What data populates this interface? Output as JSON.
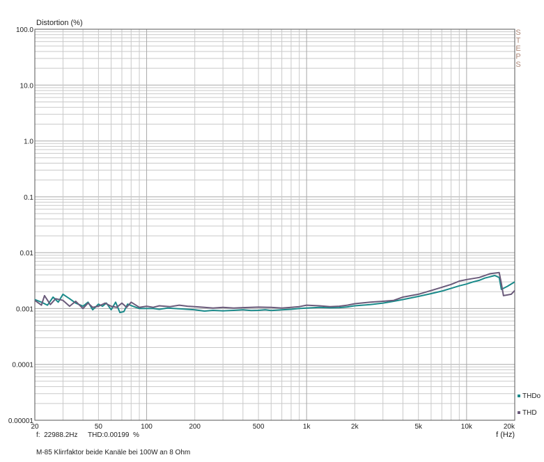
{
  "chart_data": {
    "type": "line",
    "y_axis_title": "Distortion (%)",
    "x_axis_title": "f (Hz)",
    "side_label": "STEPS",
    "y_scale": "log",
    "x_scale": "log",
    "ylim": [
      1e-05,
      100
    ],
    "xlim": [
      20,
      20000
    ],
    "y_tick_labels": [
      {
        "v": 100,
        "t": "100.0"
      },
      {
        "v": 10,
        "t": "10.0"
      },
      {
        "v": 1,
        "t": "1.0"
      },
      {
        "v": 0.1,
        "t": "0.1"
      },
      {
        "v": 0.01,
        "t": "0.01"
      },
      {
        "v": 0.001,
        "t": "0.001"
      },
      {
        "v": 0.0001,
        "t": "0.0001"
      },
      {
        "v": 1e-05,
        "t": "0.00001"
      }
    ],
    "x_tick_labels": [
      {
        "v": 20,
        "t": "20"
      },
      {
        "v": 50,
        "t": "50"
      },
      {
        "v": 100,
        "t": "100"
      },
      {
        "v": 200,
        "t": "200"
      },
      {
        "v": 500,
        "t": "500"
      },
      {
        "v": 1000,
        "t": "1k"
      },
      {
        "v": 2000,
        "t": "2k"
      },
      {
        "v": 5000,
        "t": "5k"
      },
      {
        "v": 10000,
        "t": "10k"
      },
      {
        "v": 20000,
        "t": "20k"
      }
    ],
    "grid": true,
    "series": [
      {
        "name": "THDo",
        "color": "#1a8a8a",
        "points": [
          [
            20,
            0.00145
          ],
          [
            22,
            0.0013
          ],
          [
            24,
            0.00115
          ],
          [
            26,
            0.0016
          ],
          [
            28,
            0.0013
          ],
          [
            30,
            0.0018
          ],
          [
            33,
            0.0015
          ],
          [
            36,
            0.00125
          ],
          [
            40,
            0.0011
          ],
          [
            43,
            0.0013
          ],
          [
            46,
            0.00095
          ],
          [
            50,
            0.0012
          ],
          [
            53,
            0.0011
          ],
          [
            56,
            0.00125
          ],
          [
            60,
            0.00095
          ],
          [
            64,
            0.0013
          ],
          [
            68,
            0.00085
          ],
          [
            72,
            0.00088
          ],
          [
            76,
            0.0012
          ],
          [
            82,
            0.0011
          ],
          [
            90,
            0.001
          ],
          [
            100,
            0.001
          ],
          [
            110,
            0.001
          ],
          [
            120,
            0.00097
          ],
          [
            135,
            0.00102
          ],
          [
            150,
            0.001
          ],
          [
            170,
            0.00098
          ],
          [
            200,
            0.00095
          ],
          [
            230,
            0.0009
          ],
          [
            260,
            0.00093
          ],
          [
            300,
            0.00091
          ],
          [
            350,
            0.00093
          ],
          [
            400,
            0.00095
          ],
          [
            450,
            0.00092
          ],
          [
            500,
            0.00093
          ],
          [
            550,
            0.00095
          ],
          [
            600,
            0.00092
          ],
          [
            700,
            0.00095
          ],
          [
            800,
            0.00097
          ],
          [
            900,
            0.001
          ],
          [
            1000,
            0.00102
          ],
          [
            1200,
            0.00105
          ],
          [
            1400,
            0.00103
          ],
          [
            1600,
            0.00104
          ],
          [
            1800,
            0.00107
          ],
          [
            2000,
            0.00112
          ],
          [
            2500,
            0.00118
          ],
          [
            3000,
            0.00125
          ],
          [
            3500,
            0.00135
          ],
          [
            4000,
            0.00145
          ],
          [
            5000,
            0.00165
          ],
          [
            6000,
            0.00185
          ],
          [
            7000,
            0.00205
          ],
          [
            8000,
            0.0023
          ],
          [
            9000,
            0.00255
          ],
          [
            10000,
            0.00275
          ],
          [
            11000,
            0.003
          ],
          [
            12000,
            0.0032
          ],
          [
            13000,
            0.0035
          ],
          [
            14000,
            0.0037
          ],
          [
            15000,
            0.0039
          ],
          [
            16000,
            0.0036
          ],
          [
            16500,
            0.0022
          ],
          [
            18000,
            0.0025
          ],
          [
            20000,
            0.003
          ]
        ]
      },
      {
        "name": "THD",
        "color": "#6a5a7a",
        "points": [
          [
            20,
            0.0014
          ],
          [
            22,
            0.00115
          ],
          [
            23,
            0.0017
          ],
          [
            25,
            0.00118
          ],
          [
            27,
            0.0015
          ],
          [
            30,
            0.0014
          ],
          [
            33,
            0.0011
          ],
          [
            36,
            0.00135
          ],
          [
            40,
            0.001
          ],
          [
            43,
            0.00125
          ],
          [
            46,
            0.00105
          ],
          [
            50,
            0.0011
          ],
          [
            55,
            0.00125
          ],
          [
            60,
            0.0011
          ],
          [
            65,
            0.00105
          ],
          [
            70,
            0.00125
          ],
          [
            75,
            0.00105
          ],
          [
            80,
            0.0013
          ],
          [
            90,
            0.00105
          ],
          [
            100,
            0.0011
          ],
          [
            110,
            0.00105
          ],
          [
            120,
            0.00112
          ],
          [
            140,
            0.00108
          ],
          [
            160,
            0.00115
          ],
          [
            180,
            0.0011
          ],
          [
            200,
            0.00108
          ],
          [
            230,
            0.00105
          ],
          [
            260,
            0.00102
          ],
          [
            300,
            0.00105
          ],
          [
            350,
            0.00102
          ],
          [
            400,
            0.00104
          ],
          [
            500,
            0.00106
          ],
          [
            600,
            0.00105
          ],
          [
            700,
            0.00102
          ],
          [
            800,
            0.00105
          ],
          [
            900,
            0.00108
          ],
          [
            1000,
            0.00115
          ],
          [
            1200,
            0.00112
          ],
          [
            1400,
            0.00108
          ],
          [
            1600,
            0.0011
          ],
          [
            1800,
            0.00115
          ],
          [
            2000,
            0.00122
          ],
          [
            2500,
            0.0013
          ],
          [
            3000,
            0.00135
          ],
          [
            3500,
            0.0014
          ],
          [
            4000,
            0.0016
          ],
          [
            5000,
            0.0018
          ],
          [
            6000,
            0.0021
          ],
          [
            7000,
            0.0024
          ],
          [
            8000,
            0.0027
          ],
          [
            9000,
            0.0031
          ],
          [
            10000,
            0.0033
          ],
          [
            12000,
            0.0036
          ],
          [
            14000,
            0.0042
          ],
          [
            16000,
            0.0044
          ],
          [
            16500,
            0.0028
          ],
          [
            17000,
            0.0017
          ],
          [
            18000,
            0.00175
          ],
          [
            19000,
            0.0018
          ],
          [
            20000,
            0.0021
          ]
        ]
      }
    ]
  },
  "readout": {
    "freq_text": "f:  22988.2Hz",
    "thd_text": "THD:0.00199  %"
  },
  "caption": "M-85 Klirrfaktor beide Kanäle bei 100W an 8 Ohm"
}
